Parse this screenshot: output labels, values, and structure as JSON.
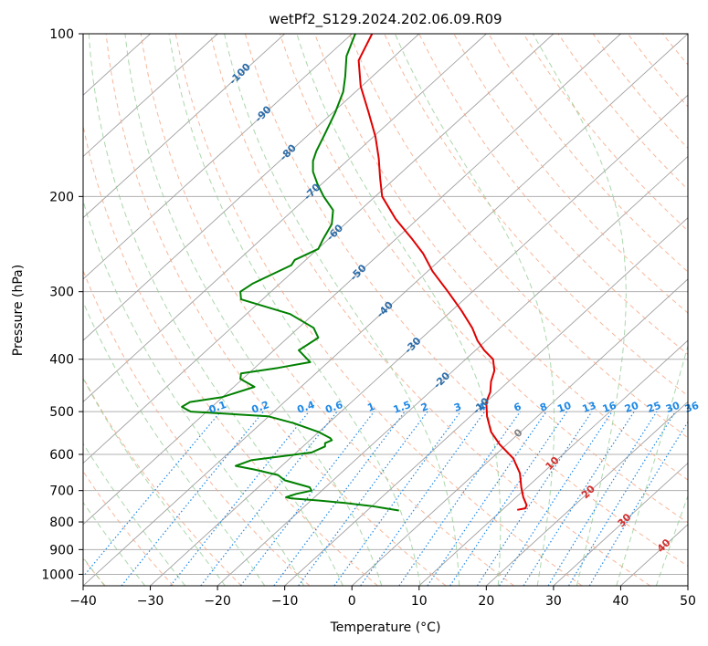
{
  "chart_data": {
    "type": "line",
    "title": "wetPf2_S129.2024.202.06.09.R09",
    "xlabel": "Temperature (°C)",
    "ylabel": "Pressure (hPa)",
    "xlim": [
      -40,
      50
    ],
    "ylim": [
      1050,
      100
    ],
    "y_scale": "log",
    "grid": true,
    "x_ticks": [
      "−40",
      "−30",
      "−20",
      "−10",
      "0",
      "10",
      "20",
      "30",
      "40",
      "50"
    ],
    "y_ticks": [
      {
        "p": 100,
        "label": "100"
      },
      {
        "p": 200,
        "label": "200"
      },
      {
        "p": 300,
        "label": "300"
      },
      {
        "p": 400,
        "label": "400"
      },
      {
        "p": 500,
        "label": "500"
      },
      {
        "p": 600,
        "label": "600"
      },
      {
        "p": 700,
        "label": "700"
      },
      {
        "p": 800,
        "label": "800"
      },
      {
        "p": 900,
        "label": "900"
      },
      {
        "p": 1000,
        "label": "1000"
      }
    ],
    "series": [
      {
        "role": "temperature",
        "color": "#e00000",
        "points": [
          [
            3,
            100
          ],
          [
            1,
            112
          ],
          [
            1.3,
            125
          ],
          [
            2.5,
            140
          ],
          [
            3.5,
            155
          ],
          [
            4,
            170
          ],
          [
            4.2,
            185
          ],
          [
            4.5,
            200
          ],
          [
            6.5,
            220
          ],
          [
            9,
            240
          ],
          [
            10.6,
            255
          ],
          [
            12,
            275
          ],
          [
            14.3,
            300
          ],
          [
            16.3,
            325
          ],
          [
            17.9,
            350
          ],
          [
            18.7,
            370
          ],
          [
            19.7,
            385
          ],
          [
            21,
            400
          ],
          [
            21.2,
            420
          ],
          [
            20.7,
            440
          ],
          [
            20.6,
            460
          ],
          [
            20,
            480
          ],
          [
            20.1,
            510
          ],
          [
            20.7,
            545
          ],
          [
            22,
            575
          ],
          [
            24,
            610
          ],
          [
            25,
            650
          ],
          [
            25.2,
            690
          ],
          [
            25.5,
            720
          ],
          [
            26,
            745
          ],
          [
            25.8,
            755
          ],
          [
            24.6,
            760
          ]
        ]
      },
      {
        "role": "dewpoint",
        "color": "#008000",
        "points": [
          [
            0.5,
            100
          ],
          [
            -0.8,
            110
          ],
          [
            -1,
            120
          ],
          [
            -1.3,
            128
          ],
          [
            -2.5,
            140
          ],
          [
            -4,
            153
          ],
          [
            -5.3,
            165
          ],
          [
            -5.8,
            172
          ],
          [
            -5.8,
            180
          ],
          [
            -5.1,
            190
          ],
          [
            -4.2,
            200
          ],
          [
            -2.8,
            212
          ],
          [
            -3,
            225
          ],
          [
            -4.3,
            240
          ],
          [
            -5,
            250
          ],
          [
            -8.5,
            262
          ],
          [
            -9,
            268
          ],
          [
            -14.8,
            290
          ],
          [
            -16.6,
            300
          ],
          [
            -16.5,
            310
          ],
          [
            -9.2,
            330
          ],
          [
            -5.7,
            350
          ],
          [
            -5,
            365
          ],
          [
            -7.9,
            385
          ],
          [
            -6.2,
            405
          ],
          [
            -11,
            415
          ],
          [
            -16.5,
            425
          ],
          [
            -16.6,
            435
          ],
          [
            -14.5,
            450
          ],
          [
            -19.3,
            470
          ],
          [
            -24.1,
            480
          ],
          [
            -25.3,
            490
          ],
          [
            -24,
            500
          ],
          [
            -12.5,
            510
          ],
          [
            -8.7,
            525
          ],
          [
            -5,
            545
          ],
          [
            -3.2,
            560
          ],
          [
            -3,
            565
          ],
          [
            -4,
            572
          ],
          [
            -4,
            580
          ],
          [
            -6,
            595
          ],
          [
            -15,
            615
          ],
          [
            -17.3,
            630
          ],
          [
            -14.5,
            640
          ],
          [
            -11,
            655
          ],
          [
            -10,
            670
          ],
          [
            -6.3,
            690
          ],
          [
            -6,
            700
          ],
          [
            -8.3,
            710
          ],
          [
            -9.8,
            720
          ],
          [
            -9,
            724
          ],
          [
            -5,
            730
          ],
          [
            -1,
            738
          ],
          [
            3,
            748
          ],
          [
            5,
            755
          ],
          [
            7,
            762
          ]
        ]
      }
    ],
    "isotherm_dry_labels": [
      "-100",
      "-90",
      "-80",
      "-70",
      "-60",
      "-50",
      "-40",
      "-30",
      "-20",
      "-10",
      "0",
      "10",
      "20",
      "30",
      "40"
    ],
    "mixing_ratio_labels": [
      "0.1",
      "0.2",
      "0.4",
      "0.6",
      "1",
      "1.5",
      "2",
      "3",
      "4",
      "6",
      "8",
      "10",
      "13",
      "16",
      "20",
      "25",
      "30",
      "36"
    ],
    "colors": {
      "temperature": "#e00000",
      "dewpoint": "#008000",
      "dry_adiabat": "#f4a582",
      "moist_adiabat": "#8fc98f",
      "mixing_ratio": "#1e88e5",
      "isotherm": "#a0a0a0",
      "dry_label_cold": "#2b6ca8",
      "dry_label_warm": "#d32f2f"
    }
  }
}
